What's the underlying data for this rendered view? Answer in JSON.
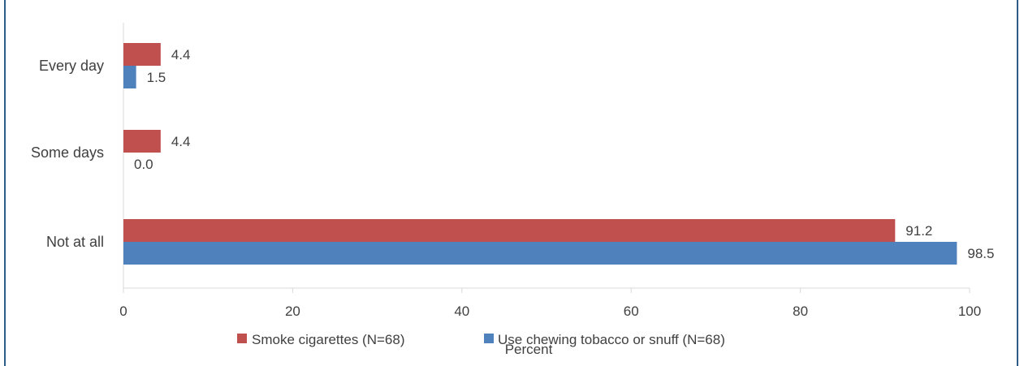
{
  "chart_data": {
    "type": "bar",
    "orientation": "horizontal",
    "categories": [
      "Every day",
      "Some days",
      "Not at all"
    ],
    "series": [
      {
        "name": "Smoke cigarettes (N=68)",
        "color": "#c0504d",
        "values": [
          4.4,
          4.4,
          91.2
        ],
        "labels": [
          "4.4",
          "4.4",
          "91.2"
        ]
      },
      {
        "name": "Use chewing tobacco or snuff (N=68)",
        "color": "#4f81bd",
        "values": [
          1.5,
          0.0,
          98.5
        ],
        "labels": [
          "1.5",
          "0.0",
          "98.5"
        ]
      }
    ],
    "xlabel": "Percent",
    "xlim": [
      0,
      100
    ],
    "xticks": [
      "0",
      "20",
      "40",
      "60",
      "80",
      "100"
    ],
    "grid": false,
    "legend_position": "bottom"
  }
}
